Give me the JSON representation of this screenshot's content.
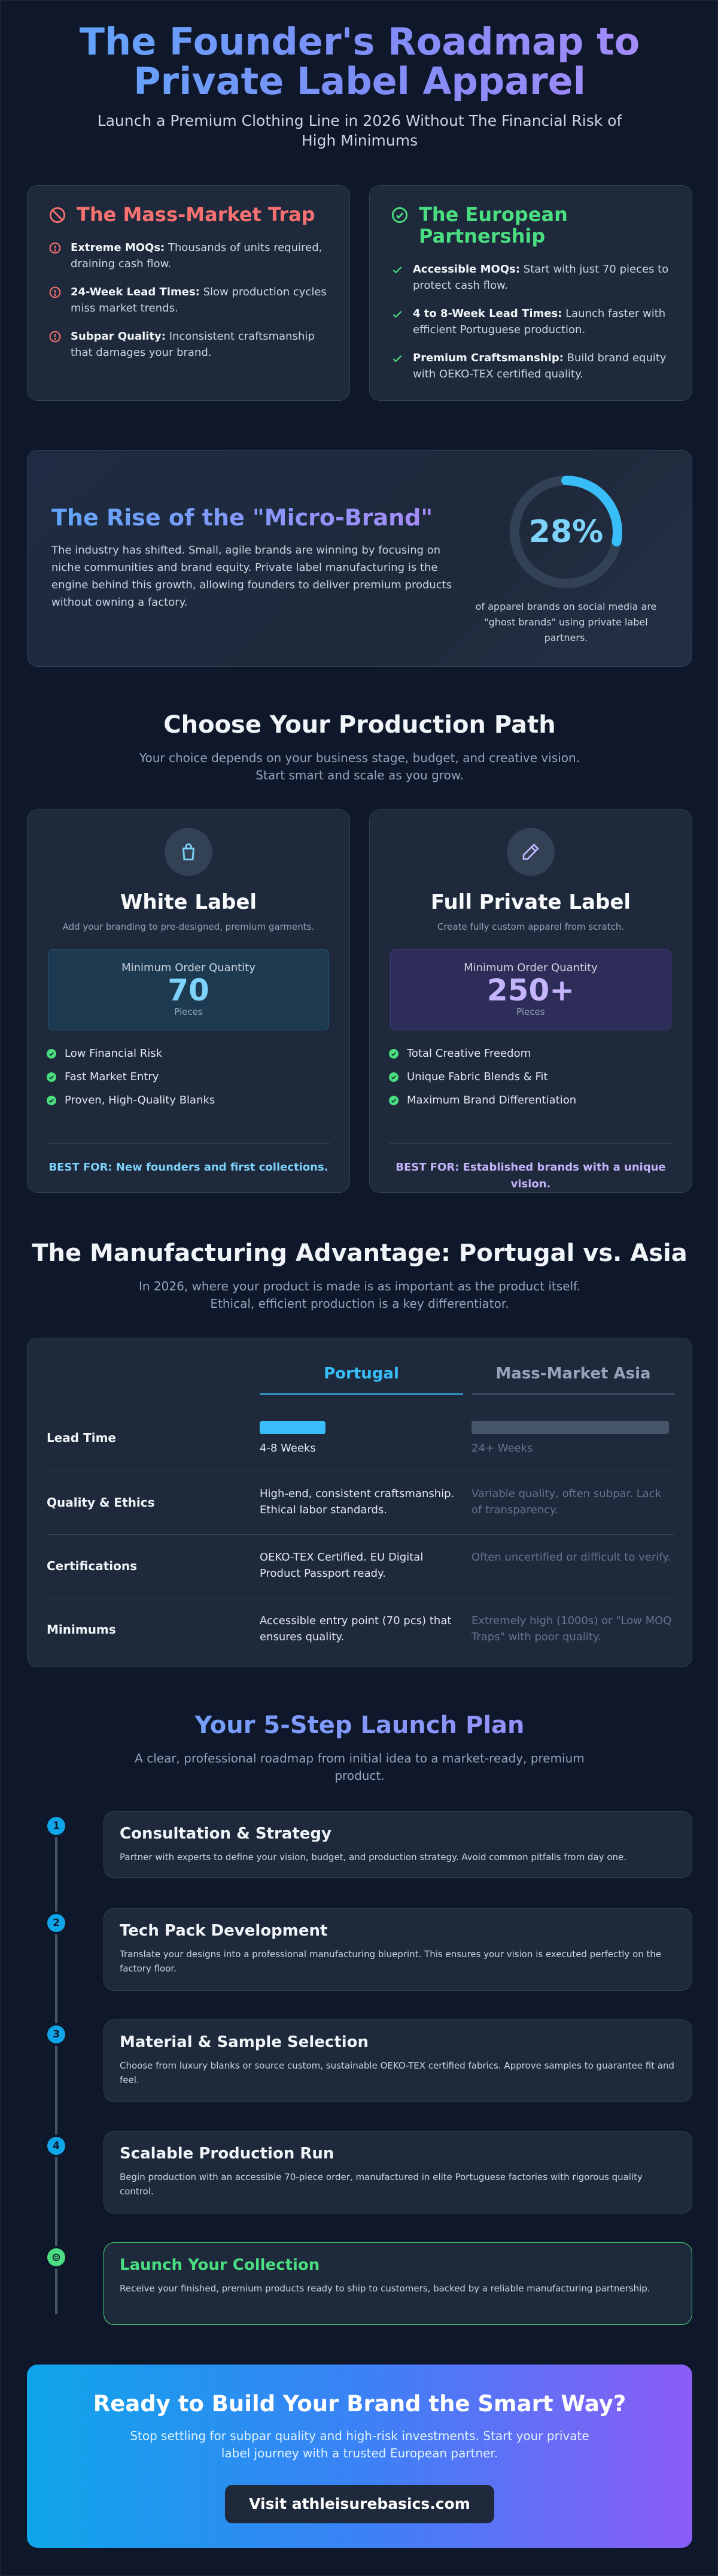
{
  "colors": {
    "background": "#0f172a",
    "card": "#1e293b",
    "accent_blue": "#38bdf8",
    "accent_purple": "#a78bfa",
    "danger": "#f87171",
    "success": "#4ade80"
  },
  "hero": {
    "title": "The Founder's Roadmap to Private Label Apparel",
    "subtitle": "Launch a Premium Clothing Line in 2026 Without The Financial Risk of High Minimums"
  },
  "trap": {
    "title": "The Mass-Market Trap",
    "icon": "ban-icon",
    "items": [
      {
        "bold": "Extreme MOQs:",
        "text": " Thousands of units required, draining cash flow."
      },
      {
        "bold": "24-Week Lead Times:",
        "text": " Slow production cycles miss market trends."
      },
      {
        "bold": "Subpar Quality:",
        "text": " Inconsistent craftsmanship that damages your brand."
      }
    ]
  },
  "partnership": {
    "title": "The European Partnership",
    "icon": "check-circle-icon",
    "items": [
      {
        "bold": "Accessible MOQs:",
        "text": " Start with just 70 pieces to protect cash flow."
      },
      {
        "bold": "4 to 8-Week Lead Times:",
        "text": " Launch faster with efficient Portuguese production."
      },
      {
        "bold": "Premium Craftsmanship:",
        "text": " Build brand equity with OEKO-TEX certified quality."
      }
    ]
  },
  "micro": {
    "title": "The Rise of the \"Micro-Brand\"",
    "text": "The industry has shifted. Small, agile brands are winning by focusing on niche communities and brand equity. Private label manufacturing is the engine behind this growth, allowing founders to deliver premium products without owning a factory.",
    "stat": "28%",
    "stat_fraction": 0.28,
    "stat_caption": "of apparel brands on social media are \"ghost brands\" using private label partners."
  },
  "production": {
    "title": "Choose Your Production Path",
    "subtitle": "Your choice depends on your business stage, budget, and creative vision. Start smart and scale as you grow.",
    "moq_label": "Minimum Order Quantity",
    "moq_unit": "Pieces",
    "options": [
      {
        "title": "White Label",
        "icon": "shopping-bag-icon",
        "subtitle": "Add your branding to pre-designed, premium garments.",
        "moq": "70",
        "features": [
          "Low Financial Risk",
          "Fast Market Entry",
          "Proven, High-Quality Blanks"
        ],
        "best_for": "BEST FOR: New founders and first collections."
      },
      {
        "title": "Full Private Label",
        "icon": "pencil-icon",
        "subtitle": "Create fully custom apparel from scratch.",
        "moq": "250+",
        "features": [
          "Total Creative Freedom",
          "Unique Fabric Blends & Fit",
          "Maximum Brand Differentiation"
        ],
        "best_for": "BEST FOR: Established brands with a unique vision."
      }
    ]
  },
  "advantage": {
    "title": "The Manufacturing Advantage: Portugal vs. Asia",
    "subtitle": "In 2026, where your product is made is as important as the product itself. Ethical, efficient production is a key differentiator.",
    "col_portugal": "Portugal",
    "col_asia": "Mass-Market Asia",
    "rows": [
      {
        "label": "Lead Time",
        "portugal": "4-8 Weeks",
        "asia": "24+ Weeks"
      },
      {
        "label": "Quality & Ethics",
        "portugal": "High-end, consistent craftsmanship. Ethical labor standards.",
        "asia": "Variable quality, often subpar. Lack of transparency."
      },
      {
        "label": "Certifications",
        "portugal": "OEKO-TEX Certified. EU Digital Product Passport ready.",
        "asia": "Often uncertified or difficult to verify."
      },
      {
        "label": "Minimums",
        "portugal": "Accessible entry point (70 pcs) that ensures quality.",
        "asia": "Extremely high (1000s) or \"Low MOQ Traps\" with poor quality."
      }
    ],
    "lead_time_weeks": {
      "portugal_max": 8,
      "asia_min": 24
    }
  },
  "plan": {
    "title": "Your 5-Step Launch Plan",
    "subtitle": "A clear, professional roadmap from initial idea to a market-ready, premium product.",
    "steps": [
      {
        "num": "1",
        "title": "Consultation & Strategy",
        "text": "Partner with experts to define your vision, budget, and production strategy. Avoid common pitfalls from day one."
      },
      {
        "num": "2",
        "title": "Tech Pack Development",
        "text": "Translate your designs into a professional manufacturing blueprint. This ensures your vision is executed perfectly on the factory floor."
      },
      {
        "num": "3",
        "title": "Material & Sample Selection",
        "text": "Choose from luxury blanks or source custom, sustainable OEKO-TEX certified fabrics. Approve samples to guarantee fit and feel."
      },
      {
        "num": "4",
        "title": "Scalable Production Run",
        "text": "Begin production with an accessible 70-piece order, manufactured in elite Portuguese factories with rigorous quality control."
      },
      {
        "num": "",
        "title": "Launch Your Collection",
        "text": "Receive your finished, premium products ready to ship to customers, backed by a reliable manufacturing partnership."
      }
    ]
  },
  "cta": {
    "title": "Ready to Build Your Brand the Smart Way?",
    "text": "Stop settling for subpar quality and high-risk investments. Start your private label journey with a trusted European partner.",
    "button": "Visit athleisurebasics.com"
  }
}
